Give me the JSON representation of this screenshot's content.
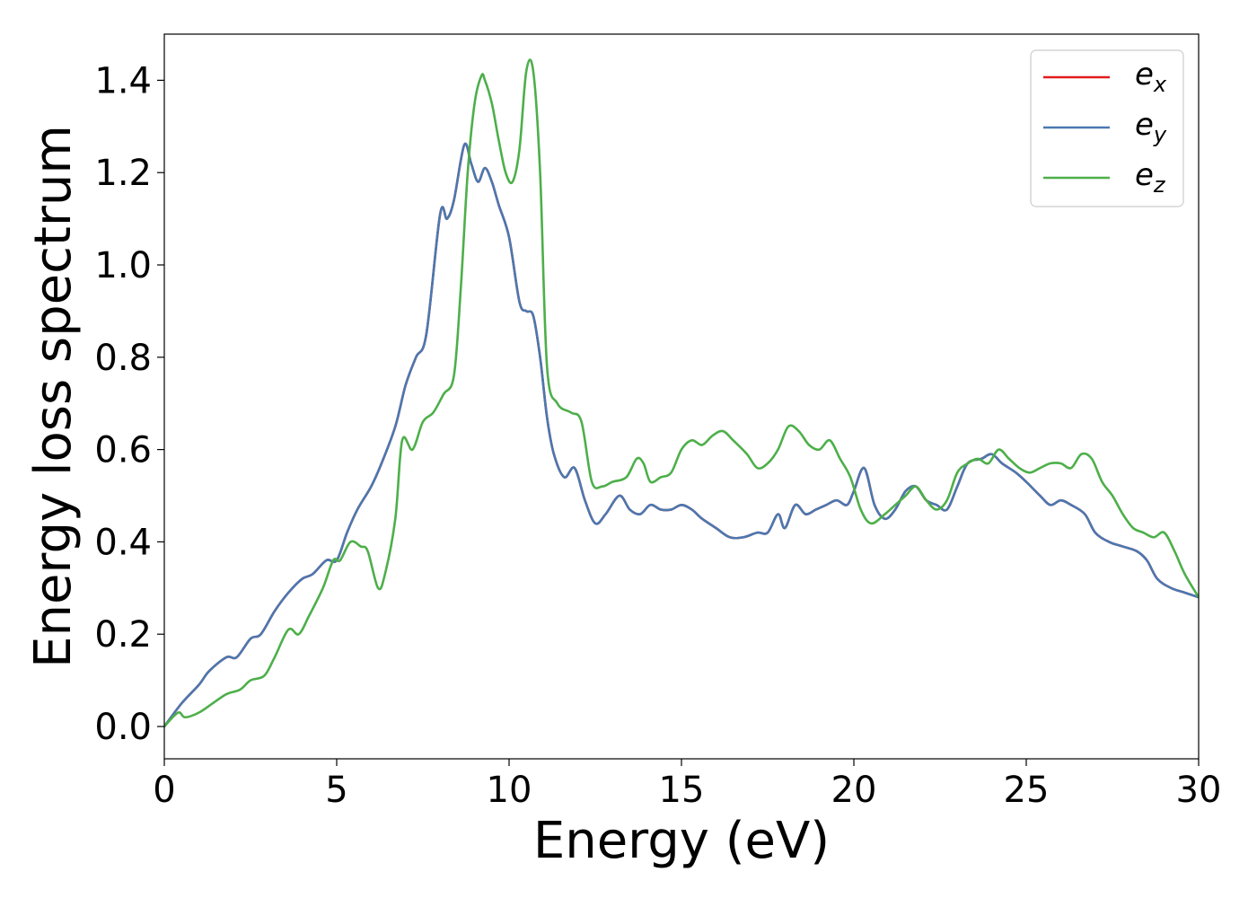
{
  "chart_data": {
    "type": "line",
    "title": "",
    "xlabel": "Energy (eV)",
    "ylabel": "Energy loss spectrum",
    "xlim": [
      0,
      30
    ],
    "ylim": [
      -0.07,
      1.5
    ],
    "xticks": [
      0,
      5,
      10,
      15,
      20,
      25,
      30
    ],
    "xtick_labels": [
      "0",
      "5",
      "10",
      "15",
      "20",
      "25",
      "30"
    ],
    "yticks": [
      0.0,
      0.2,
      0.4,
      0.6,
      0.8,
      1.0,
      1.2,
      1.4
    ],
    "ytick_labels": [
      "0.0",
      "0.2",
      "0.4",
      "0.6",
      "0.8",
      "1.0",
      "1.2",
      "1.4"
    ],
    "grid": false,
    "legend_position": "top-right",
    "series": [
      {
        "name": "e_x",
        "label_main": "e",
        "label_sub": "x",
        "color": "#e41a1c",
        "x": [
          0,
          0.5,
          1.0,
          1.3,
          1.8,
          2.1,
          2.5,
          2.8,
          3.2,
          3.6,
          4.0,
          4.3,
          4.7,
          5.0,
          5.3,
          5.6,
          6.0,
          6.3,
          6.7,
          7.0,
          7.3,
          7.6,
          8.0,
          8.2,
          8.4,
          8.7,
          8.9,
          9.1,
          9.3,
          9.5,
          9.7,
          10.0,
          10.3,
          10.5,
          10.7,
          10.9,
          11.1,
          11.3,
          11.6,
          11.9,
          12.2,
          12.5,
          12.8,
          13.2,
          13.5,
          13.8,
          14.1,
          14.4,
          14.7,
          15.0,
          15.3,
          15.6,
          16.0,
          16.4,
          16.8,
          17.2,
          17.5,
          17.8,
          18.0,
          18.3,
          18.6,
          18.9,
          19.2,
          19.5,
          19.8,
          20.0,
          20.3,
          20.6,
          20.9,
          21.2,
          21.5,
          21.8,
          22.1,
          22.4,
          22.7,
          23.0,
          23.3,
          23.7,
          24.0,
          24.3,
          24.7,
          25.0,
          25.4,
          25.7,
          26.0,
          26.3,
          26.7,
          27.0,
          27.4,
          27.8,
          28.2,
          28.5,
          28.8,
          29.2,
          29.6,
          30.0
        ],
        "values": [
          0,
          0.05,
          0.09,
          0.12,
          0.15,
          0.15,
          0.19,
          0.2,
          0.25,
          0.29,
          0.32,
          0.33,
          0.36,
          0.36,
          0.42,
          0.47,
          0.52,
          0.57,
          0.65,
          0.74,
          0.8,
          0.85,
          1.11,
          1.1,
          1.14,
          1.26,
          1.22,
          1.18,
          1.21,
          1.18,
          1.13,
          1.06,
          0.92,
          0.9,
          0.89,
          0.8,
          0.67,
          0.59,
          0.54,
          0.56,
          0.49,
          0.44,
          0.46,
          0.5,
          0.47,
          0.46,
          0.48,
          0.47,
          0.47,
          0.48,
          0.47,
          0.45,
          0.43,
          0.41,
          0.41,
          0.42,
          0.42,
          0.46,
          0.43,
          0.48,
          0.46,
          0.47,
          0.48,
          0.49,
          0.48,
          0.51,
          0.56,
          0.48,
          0.45,
          0.47,
          0.51,
          0.52,
          0.49,
          0.48,
          0.47,
          0.52,
          0.57,
          0.58,
          0.59,
          0.57,
          0.55,
          0.53,
          0.5,
          0.48,
          0.49,
          0.48,
          0.46,
          0.42,
          0.4,
          0.39,
          0.38,
          0.36,
          0.32,
          0.3,
          0.29,
          0.28
        ]
      },
      {
        "name": "e_y",
        "label_main": "e",
        "label_sub": "y",
        "color": "#4a78b0",
        "x": [
          0,
          0.5,
          1.0,
          1.3,
          1.8,
          2.1,
          2.5,
          2.8,
          3.2,
          3.6,
          4.0,
          4.3,
          4.7,
          5.0,
          5.3,
          5.6,
          6.0,
          6.3,
          6.7,
          7.0,
          7.3,
          7.6,
          8.0,
          8.2,
          8.4,
          8.7,
          8.9,
          9.1,
          9.3,
          9.5,
          9.7,
          10.0,
          10.3,
          10.5,
          10.7,
          10.9,
          11.1,
          11.3,
          11.6,
          11.9,
          12.2,
          12.5,
          12.8,
          13.2,
          13.5,
          13.8,
          14.1,
          14.4,
          14.7,
          15.0,
          15.3,
          15.6,
          16.0,
          16.4,
          16.8,
          17.2,
          17.5,
          17.8,
          18.0,
          18.3,
          18.6,
          18.9,
          19.2,
          19.5,
          19.8,
          20.0,
          20.3,
          20.6,
          20.9,
          21.2,
          21.5,
          21.8,
          22.1,
          22.4,
          22.7,
          23.0,
          23.3,
          23.7,
          24.0,
          24.3,
          24.7,
          25.0,
          25.4,
          25.7,
          26.0,
          26.3,
          26.7,
          27.0,
          27.4,
          27.8,
          28.2,
          28.5,
          28.8,
          29.2,
          29.6,
          30.0
        ],
        "values": [
          0,
          0.05,
          0.09,
          0.12,
          0.15,
          0.15,
          0.19,
          0.2,
          0.25,
          0.29,
          0.32,
          0.33,
          0.36,
          0.36,
          0.42,
          0.47,
          0.52,
          0.57,
          0.65,
          0.74,
          0.8,
          0.85,
          1.11,
          1.1,
          1.14,
          1.26,
          1.22,
          1.18,
          1.21,
          1.18,
          1.13,
          1.06,
          0.92,
          0.9,
          0.89,
          0.8,
          0.67,
          0.59,
          0.54,
          0.56,
          0.49,
          0.44,
          0.46,
          0.5,
          0.47,
          0.46,
          0.48,
          0.47,
          0.47,
          0.48,
          0.47,
          0.45,
          0.43,
          0.41,
          0.41,
          0.42,
          0.42,
          0.46,
          0.43,
          0.48,
          0.46,
          0.47,
          0.48,
          0.49,
          0.48,
          0.51,
          0.56,
          0.48,
          0.45,
          0.47,
          0.51,
          0.52,
          0.49,
          0.48,
          0.47,
          0.52,
          0.57,
          0.58,
          0.59,
          0.57,
          0.55,
          0.53,
          0.5,
          0.48,
          0.49,
          0.48,
          0.46,
          0.42,
          0.4,
          0.39,
          0.38,
          0.36,
          0.32,
          0.3,
          0.29,
          0.28
        ]
      },
      {
        "name": "e_z",
        "label_main": "e",
        "label_sub": "z",
        "color": "#4daf4a",
        "x": [
          0,
          0.4,
          0.6,
          1.0,
          1.4,
          1.8,
          2.2,
          2.5,
          2.9,
          3.2,
          3.6,
          3.9,
          4.2,
          4.6,
          4.9,
          5.1,
          5.4,
          5.7,
          5.9,
          6.2,
          6.4,
          6.7,
          6.9,
          7.2,
          7.5,
          7.8,
          8.1,
          8.4,
          8.6,
          8.8,
          9.0,
          9.2,
          9.3,
          9.5,
          9.7,
          9.9,
          10.1,
          10.3,
          10.5,
          10.7,
          10.9,
          11.1,
          11.4,
          11.8,
          12.1,
          12.4,
          12.7,
          13.0,
          13.4,
          13.7,
          13.9,
          14.1,
          14.4,
          14.7,
          15.0,
          15.3,
          15.6,
          15.9,
          16.2,
          16.5,
          16.9,
          17.2,
          17.5,
          17.8,
          18.1,
          18.4,
          18.7,
          19.0,
          19.3,
          19.6,
          19.9,
          20.2,
          20.5,
          20.9,
          21.2,
          21.5,
          21.8,
          22.1,
          22.4,
          22.7,
          23.0,
          23.3,
          23.6,
          23.9,
          24.2,
          24.5,
          24.8,
          25.1,
          25.4,
          25.7,
          26.0,
          26.3,
          26.6,
          26.9,
          27.2,
          27.5,
          27.8,
          28.1,
          28.4,
          28.7,
          29.0,
          29.3,
          29.6,
          30.0
        ],
        "values": [
          0,
          0.03,
          0.02,
          0.03,
          0.05,
          0.07,
          0.08,
          0.1,
          0.11,
          0.15,
          0.21,
          0.2,
          0.24,
          0.3,
          0.36,
          0.36,
          0.4,
          0.39,
          0.38,
          0.3,
          0.33,
          0.45,
          0.62,
          0.6,
          0.66,
          0.68,
          0.72,
          0.76,
          0.95,
          1.2,
          1.35,
          1.41,
          1.4,
          1.35,
          1.27,
          1.2,
          1.18,
          1.25,
          1.42,
          1.42,
          1.2,
          0.78,
          0.7,
          0.68,
          0.66,
          0.53,
          0.52,
          0.53,
          0.54,
          0.58,
          0.57,
          0.53,
          0.54,
          0.55,
          0.6,
          0.62,
          0.61,
          0.63,
          0.64,
          0.62,
          0.59,
          0.56,
          0.57,
          0.6,
          0.65,
          0.64,
          0.61,
          0.6,
          0.62,
          0.58,
          0.54,
          0.47,
          0.44,
          0.46,
          0.48,
          0.5,
          0.52,
          0.49,
          0.47,
          0.49,
          0.55,
          0.57,
          0.58,
          0.57,
          0.6,
          0.58,
          0.56,
          0.55,
          0.56,
          0.57,
          0.57,
          0.56,
          0.59,
          0.58,
          0.53,
          0.5,
          0.46,
          0.43,
          0.42,
          0.41,
          0.42,
          0.38,
          0.33,
          0.28
        ]
      }
    ]
  }
}
